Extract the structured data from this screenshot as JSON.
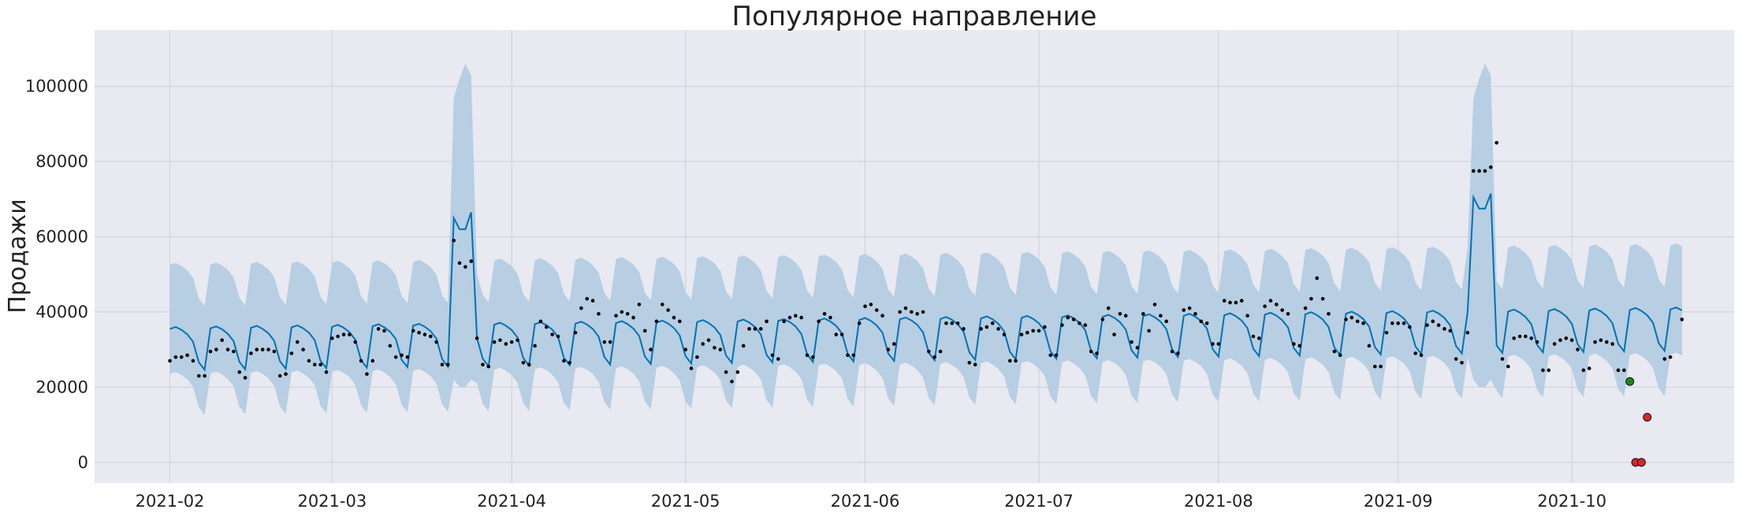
{
  "chart_data": {
    "type": "line",
    "title": "Популярное направление",
    "xlabel": "",
    "ylabel": "Продажи",
    "xlim": [
      "2021-01-19",
      "2021-10-29"
    ],
    "ylim": [
      -5500,
      115000
    ],
    "grid": true,
    "x_ticks": [
      "2021-02-01",
      "2021-03-01",
      "2021-04-01",
      "2021-05-01",
      "2021-06-01",
      "2021-07-01",
      "2021-08-01",
      "2021-09-01",
      "2021-10-01"
    ],
    "x_tick_labels": [
      "2021-02",
      "2021-03",
      "2021-04",
      "2021-05",
      "2021-06",
      "2021-07",
      "2021-08",
      "2021-09",
      "2021-10"
    ],
    "y_ticks": [
      0,
      20000,
      40000,
      60000,
      80000,
      100000
    ],
    "y_tick_labels": [
      "0",
      "20000",
      "40000",
      "60000",
      "80000",
      "100000"
    ],
    "forecast": {
      "start": "2021-02-01",
      "end": "2021-10-20",
      "base": 31000,
      "trend_per_day": 20,
      "weekly_pattern": [
        4500,
        5000,
        4200,
        3000,
        1000,
        -4500,
        -6500
      ],
      "peaks": [
        {
          "start": "2021-03-22",
          "values": [
            65000,
            62000,
            62000,
            66500
          ]
        },
        {
          "start": "2021-09-14",
          "values": [
            70500,
            67500,
            67500,
            71500
          ]
        }
      ],
      "interval_upper_offset": 17000,
      "interval_lower_offset": 12000,
      "peak_upper": [
        100000,
        95000,
        97000,
        102000,
        106000,
        103000,
        103000,
        109000
      ],
      "peak_lower": [
        22000,
        20000,
        20000,
        22000
      ]
    },
    "actuals": [
      {
        "x": "2021-02-01",
        "y": 27000
      },
      {
        "x": "2021-02-02",
        "y": 28000
      },
      {
        "x": "2021-02-03",
        "y": 28000
      },
      {
        "x": "2021-02-04",
        "y": 28500
      },
      {
        "x": "2021-02-05",
        "y": 27000
      },
      {
        "x": "2021-02-06",
        "y": 23000
      },
      {
        "x": "2021-02-07",
        "y": 23000
      },
      {
        "x": "2021-02-08",
        "y": 29500
      },
      {
        "x": "2021-02-09",
        "y": 30000
      },
      {
        "x": "2021-02-10",
        "y": 32500
      },
      {
        "x": "2021-02-11",
        "y": 30000
      },
      {
        "x": "2021-02-12",
        "y": 29500
      },
      {
        "x": "2021-02-13",
        "y": 24000
      },
      {
        "x": "2021-02-14",
        "y": 22500
      },
      {
        "x": "2021-02-15",
        "y": 29000
      },
      {
        "x": "2021-02-16",
        "y": 30000
      },
      {
        "x": "2021-02-17",
        "y": 30000
      },
      {
        "x": "2021-02-18",
        "y": 30000
      },
      {
        "x": "2021-02-19",
        "y": 29500
      },
      {
        "x": "2021-02-20",
        "y": 23000
      },
      {
        "x": "2021-02-21",
        "y": 23500
      },
      {
        "x": "2021-02-22",
        "y": 29000
      },
      {
        "x": "2021-02-23",
        "y": 32000
      },
      {
        "x": "2021-02-24",
        "y": 30000
      },
      {
        "x": "2021-02-25",
        "y": 27000
      },
      {
        "x": "2021-02-26",
        "y": 26000
      },
      {
        "x": "2021-02-27",
        "y": 26000
      },
      {
        "x": "2021-02-28",
        "y": 24000
      },
      {
        "x": "2021-03-01",
        "y": 33000
      },
      {
        "x": "2021-03-02",
        "y": 33500
      },
      {
        "x": "2021-03-03",
        "y": 34000
      },
      {
        "x": "2021-03-04",
        "y": 34000
      },
      {
        "x": "2021-03-05",
        "y": 32000
      },
      {
        "x": "2021-03-06",
        "y": 27000
      },
      {
        "x": "2021-03-07",
        "y": 23500
      },
      {
        "x": "2021-03-08",
        "y": 27000
      },
      {
        "x": "2021-03-09",
        "y": 35500
      },
      {
        "x": "2021-03-10",
        "y": 35000
      },
      {
        "x": "2021-03-11",
        "y": 31000
      },
      {
        "x": "2021-03-12",
        "y": 28000
      },
      {
        "x": "2021-03-13",
        "y": 28500
      },
      {
        "x": "2021-03-14",
        "y": 28000
      },
      {
        "x": "2021-03-15",
        "y": 35000
      },
      {
        "x": "2021-03-16",
        "y": 34500
      },
      {
        "x": "2021-03-17",
        "y": 34000
      },
      {
        "x": "2021-03-18",
        "y": 33500
      },
      {
        "x": "2021-03-19",
        "y": 32000
      },
      {
        "x": "2021-03-20",
        "y": 26000
      },
      {
        "x": "2021-03-21",
        "y": 26000
      },
      {
        "x": "2021-03-22",
        "y": 59000
      },
      {
        "x": "2021-03-23",
        "y": 53000
      },
      {
        "x": "2021-03-24",
        "y": 52000
      },
      {
        "x": "2021-03-25",
        "y": 53500
      },
      {
        "x": "2021-03-26",
        "y": 33000
      },
      {
        "x": "2021-03-27",
        "y": 26000
      },
      {
        "x": "2021-03-28",
        "y": 25500
      },
      {
        "x": "2021-03-29",
        "y": 32000
      },
      {
        "x": "2021-03-30",
        "y": 32500
      },
      {
        "x": "2021-03-31",
        "y": 31500
      },
      {
        "x": "2021-04-01",
        "y": 32000
      },
      {
        "x": "2021-04-02",
        "y": 32500
      },
      {
        "x": "2021-04-03",
        "y": 26500
      },
      {
        "x": "2021-04-04",
        "y": 26000
      },
      {
        "x": "2021-04-05",
        "y": 31000
      },
      {
        "x": "2021-04-06",
        "y": 37500
      },
      {
        "x": "2021-04-07",
        "y": 36000
      },
      {
        "x": "2021-04-08",
        "y": 34000
      },
      {
        "x": "2021-04-09",
        "y": 33500
      },
      {
        "x": "2021-04-10",
        "y": 27000
      },
      {
        "x": "2021-04-11",
        "y": 26500
      },
      {
        "x": "2021-04-12",
        "y": 34500
      },
      {
        "x": "2021-04-13",
        "y": 41000
      },
      {
        "x": "2021-04-14",
        "y": 43500
      },
      {
        "x": "2021-04-15",
        "y": 43000
      },
      {
        "x": "2021-04-16",
        "y": 39500
      },
      {
        "x": "2021-04-17",
        "y": 32000
      },
      {
        "x": "2021-04-18",
        "y": 32000
      },
      {
        "x": "2021-04-19",
        "y": 39000
      },
      {
        "x": "2021-04-20",
        "y": 40000
      },
      {
        "x": "2021-04-21",
        "y": 39500
      },
      {
        "x": "2021-04-22",
        "y": 38500
      },
      {
        "x": "2021-04-23",
        "y": 42000
      },
      {
        "x": "2021-04-24",
        "y": 35000
      },
      {
        "x": "2021-04-25",
        "y": 30000
      },
      {
        "x": "2021-04-26",
        "y": 37500
      },
      {
        "x": "2021-04-27",
        "y": 42000
      },
      {
        "x": "2021-04-28",
        "y": 40500
      },
      {
        "x": "2021-04-29",
        "y": 38500
      },
      {
        "x": "2021-04-30",
        "y": 37500
      },
      {
        "x": "2021-05-01",
        "y": 30000
      },
      {
        "x": "2021-05-02",
        "y": 25000
      },
      {
        "x": "2021-05-03",
        "y": 28000
      },
      {
        "x": "2021-05-04",
        "y": 31500
      },
      {
        "x": "2021-05-05",
        "y": 32500
      },
      {
        "x": "2021-05-06",
        "y": 30500
      },
      {
        "x": "2021-05-07",
        "y": 30000
      },
      {
        "x": "2021-05-08",
        "y": 24000
      },
      {
        "x": "2021-05-09",
        "y": 21500
      },
      {
        "x": "2021-05-10",
        "y": 24000
      },
      {
        "x": "2021-05-11",
        "y": 31000
      },
      {
        "x": "2021-05-12",
        "y": 35500
      },
      {
        "x": "2021-05-13",
        "y": 35500
      },
      {
        "x": "2021-05-14",
        "y": 35500
      },
      {
        "x": "2021-05-15",
        "y": 37500
      },
      {
        "x": "2021-05-16",
        "y": 28500
      },
      {
        "x": "2021-05-17",
        "y": 27500
      },
      {
        "x": "2021-05-18",
        "y": 37500
      },
      {
        "x": "2021-05-19",
        "y": 38500
      },
      {
        "x": "2021-05-20",
        "y": 39000
      },
      {
        "x": "2021-05-21",
        "y": 38500
      },
      {
        "x": "2021-05-22",
        "y": 28500
      },
      {
        "x": "2021-05-23",
        "y": 28000
      },
      {
        "x": "2021-05-24",
        "y": 37500
      },
      {
        "x": "2021-05-25",
        "y": 39500
      },
      {
        "x": "2021-05-26",
        "y": 38500
      },
      {
        "x": "2021-05-27",
        "y": 34000
      },
      {
        "x": "2021-05-28",
        "y": 34000
      },
      {
        "x": "2021-05-29",
        "y": 28500
      },
      {
        "x": "2021-05-30",
        "y": 28500
      },
      {
        "x": "2021-05-31",
        "y": 37000
      },
      {
        "x": "2021-06-01",
        "y": 41500
      },
      {
        "x": "2021-06-02",
        "y": 42000
      },
      {
        "x": "2021-06-03",
        "y": 40500
      },
      {
        "x": "2021-06-04",
        "y": 39000
      },
      {
        "x": "2021-06-05",
        "y": 30000
      },
      {
        "x": "2021-06-06",
        "y": 31500
      },
      {
        "x": "2021-06-07",
        "y": 40000
      },
      {
        "x": "2021-06-08",
        "y": 41000
      },
      {
        "x": "2021-06-09",
        "y": 40000
      },
      {
        "x": "2021-06-10",
        "y": 39500
      },
      {
        "x": "2021-06-11",
        "y": 40000
      },
      {
        "x": "2021-06-12",
        "y": 29500
      },
      {
        "x": "2021-06-13",
        "y": 28000
      },
      {
        "x": "2021-06-14",
        "y": 29500
      },
      {
        "x": "2021-06-15",
        "y": 37000
      },
      {
        "x": "2021-06-16",
        "y": 37000
      },
      {
        "x": "2021-06-17",
        "y": 37000
      },
      {
        "x": "2021-06-18",
        "y": 35500
      },
      {
        "x": "2021-06-19",
        "y": 26500
      },
      {
        "x": "2021-06-20",
        "y": 26000
      },
      {
        "x": "2021-06-21",
        "y": 35500
      },
      {
        "x": "2021-06-22",
        "y": 36000
      },
      {
        "x": "2021-06-23",
        "y": 37000
      },
      {
        "x": "2021-06-24",
        "y": 35500
      },
      {
        "x": "2021-06-25",
        "y": 34000
      },
      {
        "x": "2021-06-26",
        "y": 27000
      },
      {
        "x": "2021-06-27",
        "y": 27000
      },
      {
        "x": "2021-06-28",
        "y": 34000
      },
      {
        "x": "2021-06-29",
        "y": 34500
      },
      {
        "x": "2021-06-30",
        "y": 35000
      },
      {
        "x": "2021-07-01",
        "y": 35000
      },
      {
        "x": "2021-07-02",
        "y": 36000
      },
      {
        "x": "2021-07-03",
        "y": 28500
      },
      {
        "x": "2021-07-04",
        "y": 28500
      },
      {
        "x": "2021-07-05",
        "y": 36500
      },
      {
        "x": "2021-07-06",
        "y": 38500
      },
      {
        "x": "2021-07-07",
        "y": 38000
      },
      {
        "x": "2021-07-08",
        "y": 37000
      },
      {
        "x": "2021-07-09",
        "y": 36500
      },
      {
        "x": "2021-07-10",
        "y": 29500
      },
      {
        "x": "2021-07-11",
        "y": 29000
      },
      {
        "x": "2021-07-12",
        "y": 38000
      },
      {
        "x": "2021-07-13",
        "y": 41000
      },
      {
        "x": "2021-07-14",
        "y": 34000
      },
      {
        "x": "2021-07-15",
        "y": 39500
      },
      {
        "x": "2021-07-16",
        "y": 39000
      },
      {
        "x": "2021-07-17",
        "y": 32000
      },
      {
        "x": "2021-07-18",
        "y": 30500
      },
      {
        "x": "2021-07-19",
        "y": 39500
      },
      {
        "x": "2021-07-20",
        "y": 35000
      },
      {
        "x": "2021-07-21",
        "y": 42000
      },
      {
        "x": "2021-07-22",
        "y": 39000
      },
      {
        "x": "2021-07-23",
        "y": 37500
      },
      {
        "x": "2021-07-24",
        "y": 29500
      },
      {
        "x": "2021-07-25",
        "y": 29000
      },
      {
        "x": "2021-07-26",
        "y": 40500
      },
      {
        "x": "2021-07-27",
        "y": 41000
      },
      {
        "x": "2021-07-28",
        "y": 39500
      },
      {
        "x": "2021-07-29",
        "y": 37500
      },
      {
        "x": "2021-07-30",
        "y": 37000
      },
      {
        "x": "2021-07-31",
        "y": 31500
      },
      {
        "x": "2021-08-01",
        "y": 31500
      },
      {
        "x": "2021-08-02",
        "y": 43000
      },
      {
        "x": "2021-08-03",
        "y": 42500
      },
      {
        "x": "2021-08-04",
        "y": 42500
      },
      {
        "x": "2021-08-05",
        "y": 43000
      },
      {
        "x": "2021-08-06",
        "y": 39000
      },
      {
        "x": "2021-08-07",
        "y": 33500
      },
      {
        "x": "2021-08-08",
        "y": 33000
      },
      {
        "x": "2021-08-09",
        "y": 41500
      },
      {
        "x": "2021-08-10",
        "y": 43000
      },
      {
        "x": "2021-08-11",
        "y": 42000
      },
      {
        "x": "2021-08-12",
        "y": 40500
      },
      {
        "x": "2021-08-13",
        "y": 39500
      },
      {
        "x": "2021-08-14",
        "y": 31500
      },
      {
        "x": "2021-08-15",
        "y": 31000
      },
      {
        "x": "2021-08-16",
        "y": 41000
      },
      {
        "x": "2021-08-17",
        "y": 43500
      },
      {
        "x": "2021-08-18",
        "y": 49000
      },
      {
        "x": "2021-08-19",
        "y": 43500
      },
      {
        "x": "2021-08-20",
        "y": 39500
      },
      {
        "x": "2021-08-21",
        "y": 29500
      },
      {
        "x": "2021-08-22",
        "y": 28500
      },
      {
        "x": "2021-08-23",
        "y": 38000
      },
      {
        "x": "2021-08-24",
        "y": 38500
      },
      {
        "x": "2021-08-25",
        "y": 37500
      },
      {
        "x": "2021-08-26",
        "y": 37000
      },
      {
        "x": "2021-08-27",
        "y": 31000
      },
      {
        "x": "2021-08-28",
        "y": 25500
      },
      {
        "x": "2021-08-29",
        "y": 25500
      },
      {
        "x": "2021-08-30",
        "y": 34500
      },
      {
        "x": "2021-08-31",
        "y": 37000
      },
      {
        "x": "2021-09-01",
        "y": 37000
      },
      {
        "x": "2021-09-02",
        "y": 37000
      },
      {
        "x": "2021-09-03",
        "y": 36000
      },
      {
        "x": "2021-09-04",
        "y": 29000
      },
      {
        "x": "2021-09-05",
        "y": 28500
      },
      {
        "x": "2021-09-06",
        "y": 36500
      },
      {
        "x": "2021-09-07",
        "y": 37500
      },
      {
        "x": "2021-09-08",
        "y": 36500
      },
      {
        "x": "2021-09-09",
        "y": 35500
      },
      {
        "x": "2021-09-10",
        "y": 35000
      },
      {
        "x": "2021-09-11",
        "y": 27500
      },
      {
        "x": "2021-09-12",
        "y": 26500
      },
      {
        "x": "2021-09-13",
        "y": 34500
      },
      {
        "x": "2021-09-14",
        "y": 77500
      },
      {
        "x": "2021-09-15",
        "y": 77500
      },
      {
        "x": "2021-09-16",
        "y": 77500
      },
      {
        "x": "2021-09-17",
        "y": 78500
      },
      {
        "x": "2021-09-18",
        "y": 85000
      },
      {
        "x": "2021-09-19",
        "y": 27500
      },
      {
        "x": "2021-09-20",
        "y": 25500
      },
      {
        "x": "2021-09-21",
        "y": 33000
      },
      {
        "x": "2021-09-22",
        "y": 33500
      },
      {
        "x": "2021-09-23",
        "y": 33500
      },
      {
        "x": "2021-09-24",
        "y": 33000
      },
      {
        "x": "2021-09-25",
        "y": 32000
      },
      {
        "x": "2021-09-26",
        "y": 24500
      },
      {
        "x": "2021-09-27",
        "y": 24500
      },
      {
        "x": "2021-09-28",
        "y": 31500
      },
      {
        "x": "2021-09-29",
        "y": 32500
      },
      {
        "x": "2021-09-30",
        "y": 33000
      },
      {
        "x": "2021-10-01",
        "y": 32500
      },
      {
        "x": "2021-10-02",
        "y": 30000
      },
      {
        "x": "2021-10-03",
        "y": 24500
      },
      {
        "x": "2021-10-04",
        "y": 25000
      },
      {
        "x": "2021-10-05",
        "y": 32000
      },
      {
        "x": "2021-10-06",
        "y": 32500
      },
      {
        "x": "2021-10-07",
        "y": 32000
      },
      {
        "x": "2021-10-08",
        "y": 31500
      },
      {
        "x": "2021-10-09",
        "y": 24500
      },
      {
        "x": "2021-10-10",
        "y": 24500
      },
      {
        "x": "2021-10-17",
        "y": 27500
      },
      {
        "x": "2021-10-18",
        "y": 28000
      },
      {
        "x": "2021-10-20",
        "y": 38000
      }
    ],
    "highlight_points": [
      {
        "x": "2021-10-11",
        "y": 21500,
        "color": "#1a8a1a"
      },
      {
        "x": "2021-10-12",
        "y": 0,
        "color": "#d62728"
      },
      {
        "x": "2021-10-13",
        "y": 0,
        "color": "#d62728"
      },
      {
        "x": "2021-10-14",
        "y": 12000,
        "color": "#d62728"
      }
    ],
    "colors": {
      "background": "#e8e9f1",
      "grid": "#d0d0d6",
      "forecast_line": "#0072b2",
      "interval_fill": "#b7cee3",
      "actual_points": "#000000"
    }
  }
}
